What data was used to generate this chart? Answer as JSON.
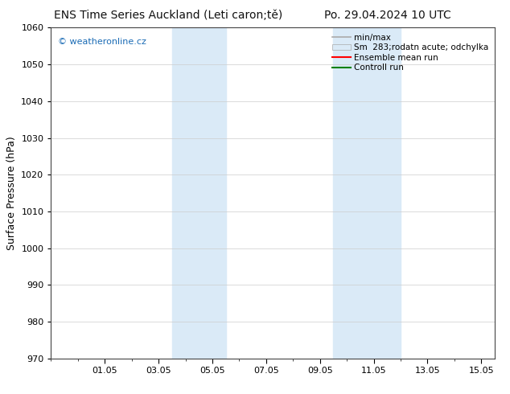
{
  "title_left": "ENS Time Series Auckland (Leti caron;tě)",
  "title_right": "Po. 29.04.2024 10 UTC",
  "ylabel": "Surface Pressure (hPa)",
  "ylim": [
    970,
    1060
  ],
  "yticks": [
    970,
    980,
    990,
    1000,
    1010,
    1020,
    1030,
    1040,
    1050,
    1060
  ],
  "xtick_labels": [
    "01.05",
    "03.05",
    "05.05",
    "07.05",
    "09.05",
    "11.05",
    "13.05",
    "15.05"
  ],
  "xtick_positions": [
    2,
    4,
    6,
    8,
    10,
    12,
    14,
    16
  ],
  "xlim": [
    0,
    16.5
  ],
  "shade_bands": [
    {
      "x_start": 4.5,
      "x_end": 6.5
    },
    {
      "x_start": 10.5,
      "x_end": 13.0
    }
  ],
  "shade_color": "#daeaf7",
  "watermark_text": "© weatheronline.cz",
  "watermark_color": "#1a6bb5",
  "bg_color": "#ffffff",
  "grid_color": "#cccccc",
  "title_fontsize": 10,
  "tick_fontsize": 8,
  "ylabel_fontsize": 9,
  "legend_fontsize": 7.5
}
